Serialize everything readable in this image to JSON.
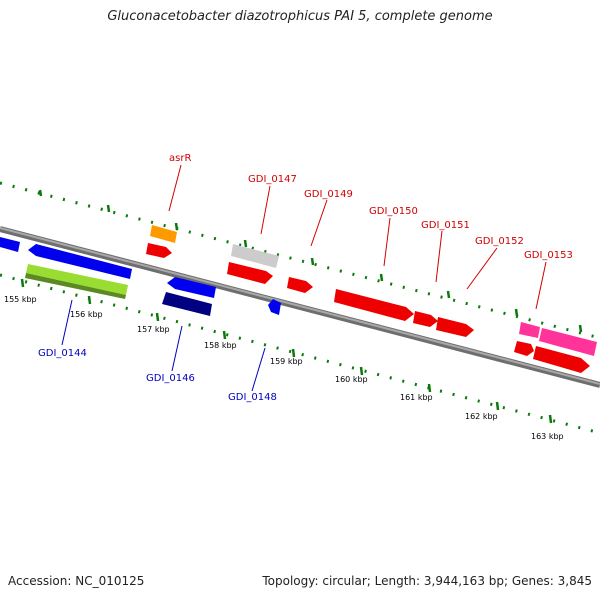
{
  "title": "Gluconacetobacter diazotrophicus PAI 5, complete genome",
  "footer": {
    "accession": "Accession: NC_010125",
    "topology": "Topology: circular; Length: 3,944,163 bp; Genes: 3,845"
  },
  "kbp_labels": [
    "155 kbp",
    "156 kbp",
    "157 kbp",
    "158 kbp",
    "159 kbp",
    "160 kbp",
    "161 kbp",
    "162 kbp",
    "163 kbp"
  ],
  "genes_top": [
    "asrR",
    "GDI_0147",
    "GDI_0149",
    "GDI_0150",
    "GDI_0151",
    "GDI_0152",
    "GDI_0153"
  ],
  "genes_bottom": [
    "GDI_0144",
    "GDI_0146",
    "GDI_0148"
  ],
  "colors": {
    "backbone": "#8a8a8a",
    "tick": "#0a7a0a",
    "forward_label": "#d00000",
    "reverse_label": "#0000c0"
  }
}
